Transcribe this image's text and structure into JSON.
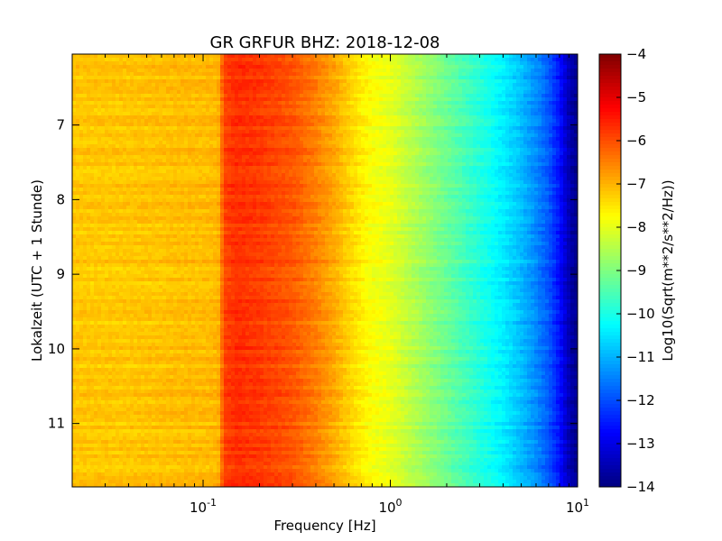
{
  "chart_data": {
    "type": "heatmap",
    "title": "GR GRFUR BHZ: 2018-12-08",
    "xlabel": "Frequency [Hz]",
    "ylabel": "Lokalzeit (UTC + 1 Stunde)",
    "x_scale": "log",
    "xlim": [
      0.02,
      10
    ],
    "ylim": [
      11.85,
      6.05
    ],
    "y_inverted": true,
    "x_tick_values": [
      0.1,
      1,
      10
    ],
    "x_tick_labels": [
      {
        "base": "10",
        "exp": "-1"
      },
      {
        "base": "10",
        "exp": "0"
      },
      {
        "base": "10",
        "exp": "1"
      }
    ],
    "y_ticks": [
      7,
      8,
      9,
      10,
      11
    ],
    "y_tick_labels": [
      "7",
      "8",
      "9",
      "10",
      "11"
    ],
    "colorbar": {
      "label": "Log10(Sqrt(m**2/s**2/Hz))",
      "range": [
        -14,
        -4
      ],
      "ticks": [
        -4,
        -5,
        -6,
        -7,
        -8,
        -9,
        -10,
        -11,
        -12,
        -13,
        -14
      ],
      "tick_labels": [
        "−4",
        "−5",
        "−6",
        "−7",
        "−8",
        "−9",
        "−10",
        "−11",
        "−12",
        "−13",
        "−14"
      ],
      "colormap": "jet"
    },
    "spectrum_profile": {
      "frequency_hz": [
        0.02,
        0.04,
        0.06,
        0.08,
        0.1,
        0.12,
        0.13,
        0.15,
        0.2,
        0.25,
        0.3,
        0.4,
        0.5,
        0.6,
        0.7,
        0.8,
        1.0,
        1.5,
        2.0,
        3.0,
        4.0,
        5.0,
        6.0,
        7.0,
        8.0,
        9.0,
        10.0
      ],
      "value": [
        -7.2,
        -7.2,
        -7.15,
        -7.1,
        -7.1,
        -7.05,
        -5.9,
        -5.7,
        -5.8,
        -5.95,
        -6.1,
        -6.5,
        -6.9,
        -7.3,
        -7.6,
        -7.8,
        -8.0,
        -8.7,
        -9.2,
        -9.9,
        -10.4,
        -10.9,
        -11.4,
        -11.9,
        -12.6,
        -13.5,
        -13.9
      ]
    }
  }
}
